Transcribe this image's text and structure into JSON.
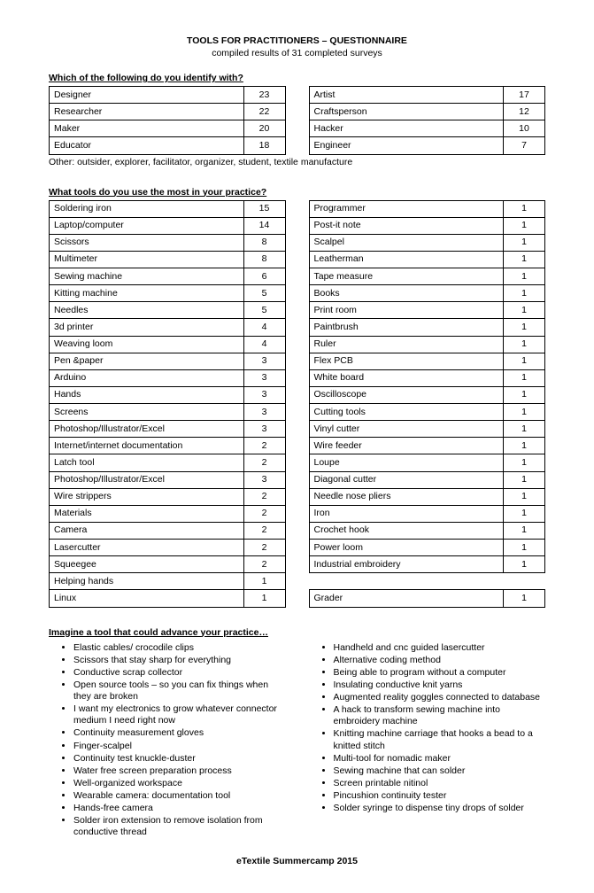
{
  "title": "TOOLS FOR PRACTITIONERS – QUESTIONNAIRE",
  "subtitle": "compiled results of 31 completed surveys",
  "footer": "eTextile Summercamp 2015",
  "q1": {
    "question": "Which of the following do you identify with?",
    "left": [
      {
        "label": "Designer",
        "count": 23
      },
      {
        "label": "Researcher",
        "count": 22
      },
      {
        "label": "Maker",
        "count": 20
      },
      {
        "label": "Educator",
        "count": 18
      }
    ],
    "right": [
      {
        "label": "Artist",
        "count": 17
      },
      {
        "label": "Craftsperson",
        "count": 12
      },
      {
        "label": "Hacker",
        "count": 10
      },
      {
        "label": "Engineer",
        "count": 7
      }
    ],
    "other_label": "Other: outsider, explorer, facilitator, organizer, student, textile manufacture"
  },
  "q2": {
    "question": "What tools do you use the most in your practice?",
    "left": [
      {
        "label": "Soldering iron",
        "count": 15
      },
      {
        "label": "Laptop/computer",
        "count": 14
      },
      {
        "label": "Scissors",
        "count": 8
      },
      {
        "label": "Multimeter",
        "count": 8
      },
      {
        "label": "Sewing machine",
        "count": 6
      },
      {
        "label": "Kitting machine",
        "count": 5
      },
      {
        "label": "Needles",
        "count": 5
      },
      {
        "label": "3d printer",
        "count": 4
      },
      {
        "label": "Weaving loom",
        "count": 4
      },
      {
        "label": "Pen &paper",
        "count": 3
      },
      {
        "label": "Arduino",
        "count": 3
      },
      {
        "label": "Hands",
        "count": 3
      },
      {
        "label": "Screens",
        "count": 3
      },
      {
        "label": "Photoshop/Illustrator/Excel",
        "count": 3
      },
      {
        "label": "Internet/internet documentation",
        "count": 2
      },
      {
        "label": "Latch tool",
        "count": 2
      },
      {
        "label": "Photoshop/Illustrator/Excel",
        "count": 3
      },
      {
        "label": "Wire strippers",
        "count": 2
      },
      {
        "label": "Materials",
        "count": 2
      },
      {
        "label": "Camera",
        "count": 2
      },
      {
        "label": "Lasercutter",
        "count": 2
      },
      {
        "label": "Squeegee",
        "count": 2
      },
      {
        "label": "Helping hands",
        "count": 1
      },
      {
        "label": "Linux",
        "count": 1
      }
    ],
    "right": [
      {
        "label": "Programmer",
        "count": 1
      },
      {
        "label": "Post-it note",
        "count": 1
      },
      {
        "label": "Scalpel",
        "count": 1
      },
      {
        "label": "Leatherman",
        "count": 1
      },
      {
        "label": "Tape measure",
        "count": 1
      },
      {
        "label": "Books",
        "count": 1
      },
      {
        "label": "Print room",
        "count": 1
      },
      {
        "label": "Paintbrush",
        "count": 1
      },
      {
        "label": "Ruler",
        "count": 1
      },
      {
        "label": "Flex PCB",
        "count": 1
      },
      {
        "label": "White board",
        "count": 1
      },
      {
        "label": "Oscilloscope",
        "count": 1
      },
      {
        "label": "Cutting tools",
        "count": 1
      },
      {
        "label": "Vinyl cutter",
        "count": 1
      },
      {
        "label": "Wire feeder",
        "count": 1
      },
      {
        "label": "Loupe",
        "count": 1
      },
      {
        "label": "Diagonal cutter",
        "count": 1
      },
      {
        "label": "Needle nose pliers",
        "count": 1
      },
      {
        "label": "Iron",
        "count": 1
      },
      {
        "label": "Crochet hook",
        "count": 1
      },
      {
        "label": "Power loom",
        "count": 1
      },
      {
        "label": "Industrial embroidery",
        "count": 1
      },
      {
        "label": "",
        "count": ""
      },
      {
        "label": "Grader",
        "count": 1
      }
    ]
  },
  "q3": {
    "question": "Imagine a tool that could advance your practice…",
    "left": [
      "Elastic cables/ crocodile clips",
      "Scissors that stay sharp for everything",
      "Conductive scrap collector",
      "Open source tools – so you can fix things when they are broken",
      "I want my electronics to grow whatever connector medium I need right now",
      "Continuity measurement gloves",
      "Finger-scalpel",
      "Continuity test knuckle-duster",
      "Water free screen preparation process",
      "Well-organized workspace",
      "Wearable camera: documentation tool",
      "Hands-free camera",
      "Solder iron extension to remove isolation from conductive thread"
    ],
    "right": [
      "Handheld and cnc guided lasercutter",
      "Alternative coding method",
      "Being able to program without a computer",
      "Insulating conductive knit yarns",
      "Augmented reality goggles connected to database",
      "A hack to transform sewing machine into embroidery machine",
      "Knitting machine carriage that hooks a bead to a knitted stitch",
      "Multi-tool for nomadic maker",
      "Sewing machine that can solder",
      "Screen printable nitinol",
      "Pincushion continuity tester",
      "Solder syringe to dispense tiny drops of solder"
    ]
  }
}
